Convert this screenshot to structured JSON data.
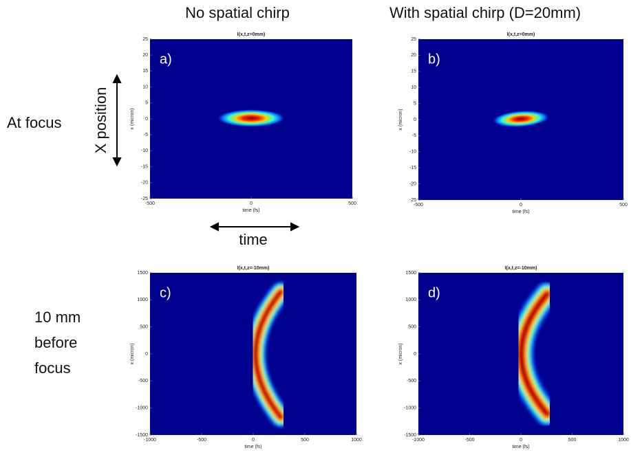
{
  "column_titles": [
    "No spatial chirp",
    "With spatial chirp (D=20mm)"
  ],
  "row_labels": {
    "at_focus": "At focus",
    "before_focus": [
      "10 mm",
      "before",
      "focus"
    ]
  },
  "annotations": {
    "x_position": "X position",
    "time": "time"
  },
  "chart_data": [
    {
      "type": "heatmap",
      "panel_label": "a)",
      "title": "I(x,t,z=0mm)",
      "xlabel": "time (fs)",
      "ylabel": "x (micron)",
      "background": "#00008f",
      "xlim": [
        -500,
        500
      ],
      "xticks": [
        -500,
        0,
        500
      ],
      "ylim": [
        -25,
        25
      ],
      "yticks": [
        -25,
        -20,
        -15,
        -10,
        -5,
        0,
        5,
        10,
        15,
        20,
        25
      ]
    },
    {
      "type": "heatmap",
      "panel_label": "b)",
      "title": "I(x,t,z=0mm)",
      "xlabel": "time (fs)",
      "ylabel": "x (micron)",
      "background": "#00008f",
      "xlim": [
        -500,
        500
      ],
      "xticks": [
        -500,
        0,
        500
      ],
      "ylim": [
        -25,
        25
      ],
      "yticks": [
        -25,
        -20,
        -15,
        -10,
        -5,
        0,
        5,
        10,
        15,
        20,
        25
      ]
    },
    {
      "type": "heatmap",
      "panel_label": "c)",
      "title": "I(x,t,z=-10mm)",
      "xlabel": "time (fs)",
      "ylabel": "x (micron)",
      "background": "#00008f",
      "xlim": [
        -1000,
        1000
      ],
      "xticks": [
        -1000,
        -500,
        0,
        500,
        1000
      ],
      "ylim": [
        -1500,
        1500
      ],
      "yticks": [
        -1500,
        -1000,
        -500,
        0,
        500,
        1000,
        1500
      ]
    },
    {
      "type": "heatmap",
      "panel_label": "d)",
      "title": "I(x,t,z=-10mm)",
      "xlabel": "time (fs)",
      "ylabel": "x (micron)",
      "background": "#00008f",
      "xlim": [
        -1000,
        1000
      ],
      "xticks": [
        -1000,
        -500,
        0,
        500,
        1000
      ],
      "ylim": [
        -1500,
        1500
      ],
      "yticks": [
        -1500,
        -1000,
        -500,
        0,
        500,
        1000,
        1500
      ]
    }
  ]
}
